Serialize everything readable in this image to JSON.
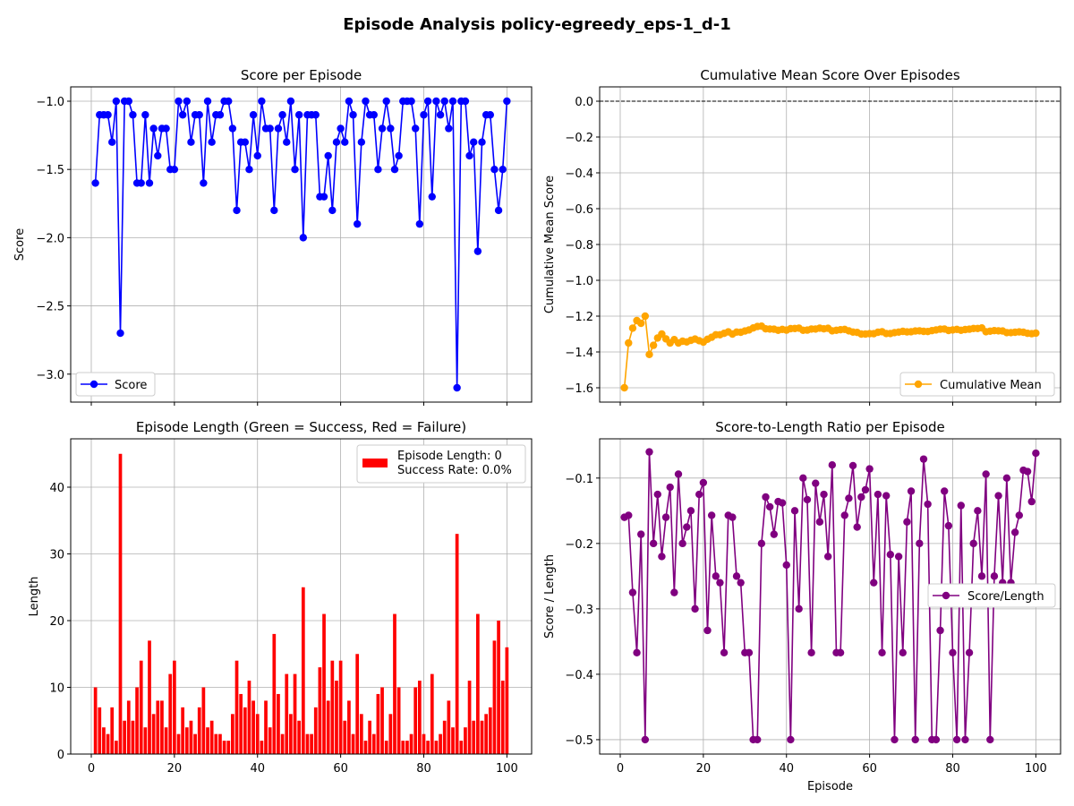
{
  "figure_title": "Episode Analysis policy-egreedy_eps-1_d-1",
  "chart_data": [
    {
      "id": "score",
      "type": "line",
      "title": "Score per Episode",
      "xlabel": "",
      "ylabel": "Score",
      "xlim": [
        -4.95,
        105.95
      ],
      "ylim": [
        -3.205,
        -0.895
      ],
      "xticks": [
        0,
        20,
        40,
        60,
        80,
        100
      ],
      "xtick_labels_shown": false,
      "yticks": [
        -3.0,
        -2.5,
        -2.0,
        -1.5,
        -1.0
      ],
      "ytick_labels": [
        "−3.0",
        "−2.5",
        "−2.0",
        "−1.5",
        "−1.0"
      ],
      "grid": true,
      "color": "#0000ff",
      "marker": "o",
      "legend_position": "lower left",
      "x": [
        1,
        2,
        3,
        4,
        5,
        6,
        7,
        8,
        9,
        10,
        11,
        12,
        13,
        14,
        15,
        16,
        17,
        18,
        19,
        20,
        21,
        22,
        23,
        24,
        25,
        26,
        27,
        28,
        29,
        30,
        31,
        32,
        33,
        34,
        35,
        36,
        37,
        38,
        39,
        40,
        41,
        42,
        43,
        44,
        45,
        46,
        47,
        48,
        49,
        50,
        51,
        52,
        53,
        54,
        55,
        56,
        57,
        58,
        59,
        60,
        61,
        62,
        63,
        64,
        65,
        66,
        67,
        68,
        69,
        70,
        71,
        72,
        73,
        74,
        75,
        76,
        77,
        78,
        79,
        80,
        81,
        82,
        83,
        84,
        85,
        86,
        87,
        88,
        89,
        90,
        91,
        92,
        93,
        94,
        95,
        96,
        97,
        98,
        99,
        100
      ],
      "series": [
        {
          "name": "Score",
          "values": [
            -1.6,
            -1.1,
            -1.1,
            -1.1,
            -1.3,
            -1.0,
            -2.7,
            -1.0,
            -1.0,
            -1.1,
            -1.6,
            -1.6,
            -1.1,
            -1.6,
            -1.2,
            -1.4,
            -1.2,
            -1.2,
            -1.5,
            -1.5,
            -1.0,
            -1.1,
            -1.0,
            -1.3,
            -1.1,
            -1.1,
            -1.6,
            -1.0,
            -1.3,
            -1.1,
            -1.1,
            -1.0,
            -1.0,
            -1.2,
            -1.8,
            -1.3,
            -1.3,
            -1.5,
            -1.1,
            -1.4,
            -1.0,
            -1.2,
            -1.2,
            -1.8,
            -1.2,
            -1.1,
            -1.3,
            -1.0,
            -1.5,
            -1.1,
            -2.0,
            -1.1,
            -1.1,
            -1.1,
            -1.7,
            -1.7,
            -1.4,
            -1.8,
            -1.3,
            -1.2,
            -1.3,
            -1.0,
            -1.1,
            -1.9,
            -1.3,
            -1.0,
            -1.1,
            -1.1,
            -1.5,
            -1.2,
            -1.0,
            -1.2,
            -1.5,
            -1.4,
            -1.0,
            -1.0,
            -1.0,
            -1.2,
            -1.9,
            -1.1,
            -1.0,
            -1.7,
            -1.0,
            -1.1,
            -1.0,
            -1.2,
            -1.0,
            -3.1,
            -1.0,
            -1.0,
            -1.4,
            -1.3,
            -2.1,
            -1.3,
            -1.1,
            -1.1,
            -1.5,
            -1.8,
            -1.5,
            -1.0
          ]
        }
      ]
    },
    {
      "id": "cummean",
      "type": "line",
      "title": "Cumulative Mean Score Over Episodes",
      "xlabel": "",
      "ylabel": "Cumulative Mean Score",
      "xlim": [
        -4.95,
        105.95
      ],
      "ylim": [
        -1.68,
        0.08
      ],
      "xticks": [
        0,
        20,
        40,
        60,
        80,
        100
      ],
      "xtick_labels_shown": false,
      "yticks": [
        -1.6,
        -1.4,
        -1.2,
        -1.0,
        -0.8,
        -0.6,
        -0.4,
        -0.2,
        0.0
      ],
      "ytick_labels": [
        "−1.6",
        "−1.4",
        "−1.2",
        "−1.0",
        "−0.8",
        "−0.6",
        "−0.4",
        "−0.2",
        "0.0"
      ],
      "grid": true,
      "color": "#ffa500",
      "marker": "o",
      "reference_line": {
        "y": 0.0,
        "style": "dashed",
        "color": "#000000"
      },
      "legend_position": "lower right",
      "x": [
        1,
        2,
        3,
        4,
        5,
        6,
        7,
        8,
        9,
        10,
        11,
        12,
        13,
        14,
        15,
        16,
        17,
        18,
        19,
        20,
        21,
        22,
        23,
        24,
        25,
        26,
        27,
        28,
        29,
        30,
        31,
        32,
        33,
        34,
        35,
        36,
        37,
        38,
        39,
        40,
        41,
        42,
        43,
        44,
        45,
        46,
        47,
        48,
        49,
        50,
        51,
        52,
        53,
        54,
        55,
        56,
        57,
        58,
        59,
        60,
        61,
        62,
        63,
        64,
        65,
        66,
        67,
        68,
        69,
        70,
        71,
        72,
        73,
        74,
        75,
        76,
        77,
        78,
        79,
        80,
        81,
        82,
        83,
        84,
        85,
        86,
        87,
        88,
        89,
        90,
        91,
        92,
        93,
        94,
        95,
        96,
        97,
        98,
        99,
        100
      ],
      "series": [
        {
          "name": "Cumulative Mean",
          "values": [
            -1.6,
            -1.35,
            -1.267,
            -1.225,
            -1.24,
            -1.2,
            -1.414,
            -1.363,
            -1.322,
            -1.3,
            -1.327,
            -1.35,
            -1.331,
            -1.35,
            -1.34,
            -1.344,
            -1.335,
            -1.328,
            -1.337,
            -1.345,
            -1.329,
            -1.318,
            -1.304,
            -1.304,
            -1.296,
            -1.288,
            -1.3,
            -1.289,
            -1.29,
            -1.283,
            -1.277,
            -1.266,
            -1.258,
            -1.256,
            -1.271,
            -1.272,
            -1.273,
            -1.279,
            -1.274,
            -1.278,
            -1.27,
            -1.269,
            -1.267,
            -1.279,
            -1.278,
            -1.272,
            -1.272,
            -1.267,
            -1.271,
            -1.268,
            -1.282,
            -1.279,
            -1.276,
            -1.274,
            -1.282,
            -1.289,
            -1.291,
            -1.3,
            -1.3,
            -1.298,
            -1.298,
            -1.29,
            -1.287,
            -1.297,
            -1.297,
            -1.292,
            -1.289,
            -1.285,
            -1.288,
            -1.287,
            -1.283,
            -1.282,
            -1.285,
            -1.286,
            -1.281,
            -1.277,
            -1.273,
            -1.272,
            -1.28,
            -1.277,
            -1.274,
            -1.279,
            -1.275,
            -1.273,
            -1.269,
            -1.269,
            -1.266,
            -1.287,
            -1.284,
            -1.281,
            -1.282,
            -1.283,
            -1.292,
            -1.292,
            -1.29,
            -1.288,
            -1.29,
            -1.296,
            -1.298,
            -1.295
          ]
        }
      ]
    },
    {
      "id": "length",
      "type": "bar",
      "title": "Episode Length (Green = Success, Red = Failure)",
      "xlabel": "",
      "ylabel": "Length",
      "xlim": [
        -4.95,
        105.95
      ],
      "ylim": [
        0,
        47.25
      ],
      "xticks": [
        0,
        20,
        40,
        60,
        80,
        100
      ],
      "xtick_labels": [
        "0",
        "20",
        "40",
        "60",
        "80",
        "100"
      ],
      "yticks": [
        0,
        10,
        20,
        30,
        40
      ],
      "ytick_labels": [
        "0",
        "10",
        "20",
        "30",
        "40"
      ],
      "grid": true,
      "bar_color": "#ff0000",
      "legend_position": "upper right",
      "legend_lines": [
        "Episode Length: 0",
        "Success Rate: 0.0%"
      ],
      "x": [
        1,
        2,
        3,
        4,
        5,
        6,
        7,
        8,
        9,
        10,
        11,
        12,
        13,
        14,
        15,
        16,
        17,
        18,
        19,
        20,
        21,
        22,
        23,
        24,
        25,
        26,
        27,
        28,
        29,
        30,
        31,
        32,
        33,
        34,
        35,
        36,
        37,
        38,
        39,
        40,
        41,
        42,
        43,
        44,
        45,
        46,
        47,
        48,
        49,
        50,
        51,
        52,
        53,
        54,
        55,
        56,
        57,
        58,
        59,
        60,
        61,
        62,
        63,
        64,
        65,
        66,
        67,
        68,
        69,
        70,
        71,
        72,
        73,
        74,
        75,
        76,
        77,
        78,
        79,
        80,
        81,
        82,
        83,
        84,
        85,
        86,
        87,
        88,
        89,
        90,
        91,
        92,
        93,
        94,
        95,
        96,
        97,
        98,
        99,
        100
      ],
      "values": [
        10,
        7,
        4,
        3,
        7,
        2,
        45,
        5,
        8,
        5,
        10,
        14,
        4,
        17,
        6,
        8,
        8,
        4,
        12,
        14,
        3,
        7,
        4,
        5,
        3,
        7,
        10,
        4,
        5,
        3,
        3,
        2,
        2,
        6,
        14,
        9,
        7,
        11,
        8,
        6,
        2,
        8,
        4,
        18,
        9,
        3,
        12,
        6,
        12,
        5,
        25,
        3,
        3,
        7,
        13,
        21,
        8,
        14,
        11,
        14,
        5,
        8,
        3,
        15,
        6,
        2,
        5,
        3,
        9,
        10,
        2,
        6,
        21,
        10,
        2,
        2,
        3,
        10,
        11,
        3,
        2,
        12,
        2,
        3,
        5,
        8,
        4,
        33,
        2,
        4,
        11,
        5,
        21,
        5,
        6,
        7,
        17,
        20,
        11,
        16
      ]
    },
    {
      "id": "ratio",
      "type": "line",
      "title": "Score-to-Length Ratio per Episode",
      "xlabel": "Episode",
      "ylabel": "Score / Length",
      "xlim": [
        -4.95,
        105.95
      ],
      "ylim": [
        -0.522,
        -0.04
      ],
      "xticks": [
        0,
        20,
        40,
        60,
        80,
        100
      ],
      "xtick_labels": [
        "0",
        "20",
        "40",
        "60",
        "80",
        "100"
      ],
      "yticks": [
        -0.5,
        -0.4,
        -0.3,
        -0.2,
        -0.1
      ],
      "ytick_labels": [
        "−0.5",
        "−0.4",
        "−0.3",
        "−0.2",
        "−0.1"
      ],
      "grid": true,
      "color": "#800080",
      "marker": "o",
      "legend_position": "center right",
      "x": [
        1,
        2,
        3,
        4,
        5,
        6,
        7,
        8,
        9,
        10,
        11,
        12,
        13,
        14,
        15,
        16,
        17,
        18,
        19,
        20,
        21,
        22,
        23,
        24,
        25,
        26,
        27,
        28,
        29,
        30,
        31,
        32,
        33,
        34,
        35,
        36,
        37,
        38,
        39,
        40,
        41,
        42,
        43,
        44,
        45,
        46,
        47,
        48,
        49,
        50,
        51,
        52,
        53,
        54,
        55,
        56,
        57,
        58,
        59,
        60,
        61,
        62,
        63,
        64,
        65,
        66,
        67,
        68,
        69,
        70,
        71,
        72,
        73,
        74,
        75,
        76,
        77,
        78,
        79,
        80,
        81,
        82,
        83,
        84,
        85,
        86,
        87,
        88,
        89,
        90,
        91,
        92,
        93,
        94,
        95,
        96,
        97,
        98,
        99,
        100
      ],
      "series": [
        {
          "name": "Score/Length",
          "values": [
            -0.16,
            -0.157,
            -0.275,
            -0.367,
            -0.186,
            -0.5,
            -0.06,
            -0.2,
            -0.125,
            -0.22,
            -0.16,
            -0.114,
            -0.275,
            -0.094,
            -0.2,
            -0.175,
            -0.15,
            -0.3,
            -0.125,
            -0.107,
            -0.333,
            -0.157,
            -0.25,
            -0.26,
            -0.367,
            -0.157,
            -0.16,
            -0.25,
            -0.26,
            -0.367,
            -0.367,
            -0.5,
            -0.5,
            -0.2,
            -0.129,
            -0.144,
            -0.186,
            -0.136,
            -0.138,
            -0.233,
            -0.5,
            -0.15,
            -0.3,
            -0.1,
            -0.133,
            -0.367,
            -0.108,
            -0.167,
            -0.125,
            -0.22,
            -0.08,
            -0.367,
            -0.367,
            -0.157,
            -0.131,
            -0.081,
            -0.175,
            -0.129,
            -0.118,
            -0.086,
            -0.26,
            -0.125,
            -0.367,
            -0.127,
            -0.217,
            -0.5,
            -0.22,
            -0.367,
            -0.167,
            -0.12,
            -0.5,
            -0.2,
            -0.071,
            -0.14,
            -0.5,
            -0.5,
            -0.333,
            -0.12,
            -0.173,
            -0.367,
            -0.5,
            -0.142,
            -0.5,
            -0.367,
            -0.2,
            -0.15,
            -0.25,
            -0.094,
            -0.5,
            -0.25,
            -0.127,
            -0.26,
            -0.1,
            -0.26,
            -0.183,
            -0.157,
            -0.088,
            -0.09,
            -0.136,
            -0.062
          ]
        }
      ]
    }
  ]
}
